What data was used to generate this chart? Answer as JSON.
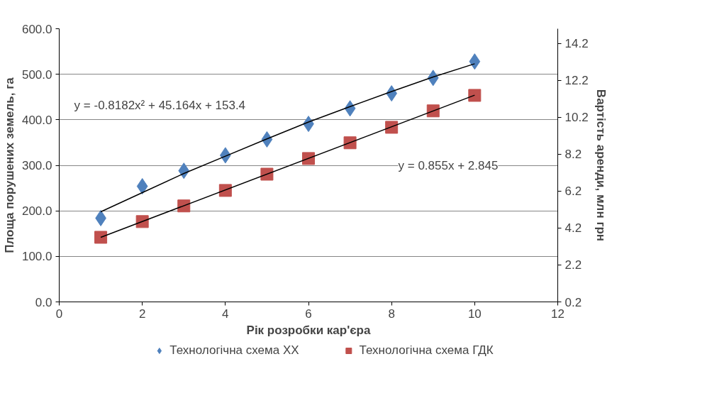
{
  "chart_data": {
    "type": "scatter",
    "xlabel": "Рік розробки кар'єра",
    "ylabel": "Площа порушених земель, га",
    "y2label": "Вартість аренди, млн грн",
    "x": [
      1,
      2,
      3,
      4,
      5,
      6,
      7,
      8,
      9,
      10
    ],
    "series": [
      {
        "name": "Технологічна схема ХХ",
        "color": "#4f81bd",
        "marker": "diamond",
        "values": [
          184,
          254,
          288,
          322,
          357,
          391,
          425,
          458,
          492,
          528
        ]
      },
      {
        "name": "Технологічна схема ГДК",
        "color": "#c0504d",
        "marker": "square",
        "axis": "y2",
        "values": [
          3.7,
          4.55,
          5.4,
          6.24,
          7.12,
          7.97,
          8.82,
          9.66,
          10.55,
          11.39
        ]
      },
      {
        "type": "line",
        "color": "#000000",
        "x": [
          1,
          2,
          3,
          4,
          5,
          6,
          7,
          8,
          9,
          10
        ],
        "values": [
          198,
          240,
          282,
          320,
          358,
          395,
          429,
          462,
          494,
          523
        ]
      },
      {
        "type": "line",
        "color": "#000000",
        "axis": "y2",
        "x": [
          1,
          10
        ],
        "values": [
          3.7,
          11.4
        ]
      }
    ],
    "annotations": [
      "y = -0.8182x² + 45.164x + 153.4",
      "y = 0.855x + 2.845"
    ],
    "xlim": [
      0,
      12
    ],
    "xticks": [
      0,
      2,
      4,
      6,
      8,
      10,
      12
    ],
    "ylim": [
      0,
      600
    ],
    "yticks": [
      {
        "value": 0,
        "label": "0.0"
      },
      {
        "value": 100,
        "label": "100.0"
      },
      {
        "value": 200,
        "label": "200.0"
      },
      {
        "value": 300,
        "label": "300.0"
      },
      {
        "value": 400,
        "label": "400.0"
      },
      {
        "value": 500,
        "label": "500.0"
      },
      {
        "value": 600,
        "label": "600.0"
      }
    ],
    "y2lim": [
      0.2,
      15.0
    ],
    "y2ticks": [
      0.2,
      2.2,
      4.2,
      6.2,
      8.2,
      10.2,
      12.2,
      14.2
    ],
    "grid": "y",
    "legend": "bottom"
  }
}
